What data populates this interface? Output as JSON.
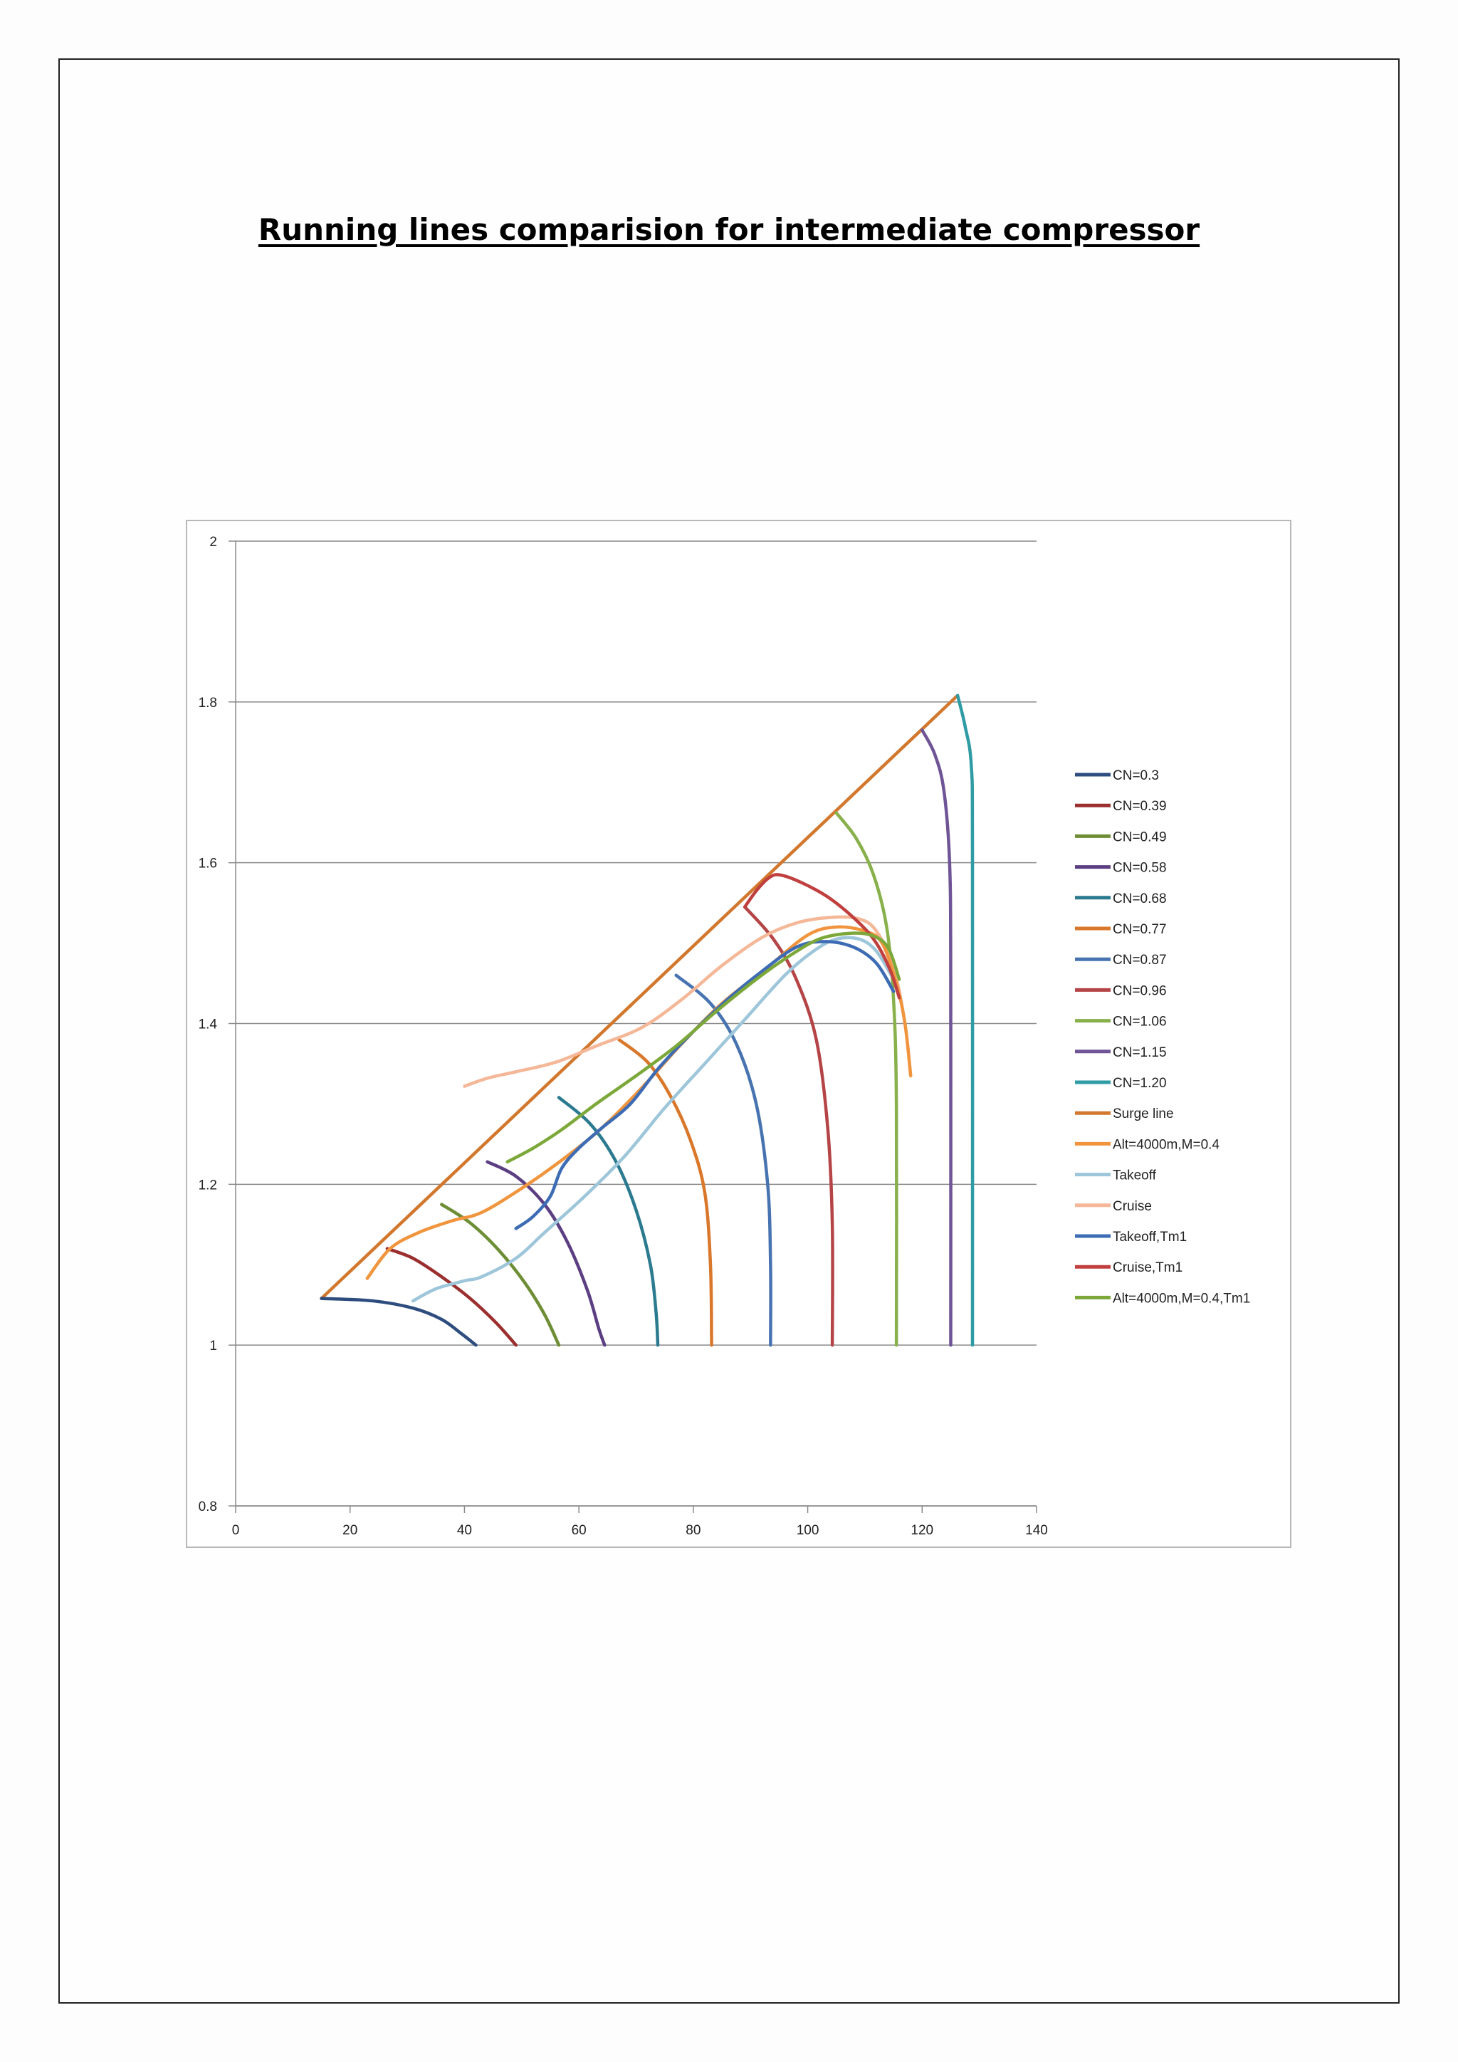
{
  "document": {
    "title": "Running lines comparision for intermediate compressor"
  },
  "chart_data": {
    "type": "line",
    "title": "",
    "xlabel": "",
    "ylabel": "",
    "xlim": [
      0,
      140
    ],
    "ylim": [
      0.8,
      2
    ],
    "x_ticks": [
      "0",
      "20",
      "40",
      "60",
      "80",
      "100",
      "120",
      "140"
    ],
    "y_ticks": [
      "0.8",
      "1",
      "1.2",
      "1.4",
      "1.6",
      "1.8",
      "2"
    ],
    "grid": "horizontal",
    "legend_position": "right",
    "series": [
      {
        "name": "CN=0.3",
        "color": "#2e4d7f",
        "points": [
          [
            15,
            1.058
          ],
          [
            24,
            1.055
          ],
          [
            31,
            1.046
          ],
          [
            36,
            1.032
          ],
          [
            39.5,
            1.014
          ],
          [
            42,
            1.0
          ]
        ]
      },
      {
        "name": "CN=0.39",
        "color": "#9b2e2e",
        "points": [
          [
            26.5,
            1.12
          ],
          [
            31,
            1.108
          ],
          [
            36,
            1.085
          ],
          [
            41,
            1.058
          ],
          [
            45.5,
            1.028
          ],
          [
            49,
            1.0
          ]
        ]
      },
      {
        "name": "CN=0.49",
        "color": "#6e8e35",
        "points": [
          [
            36,
            1.175
          ],
          [
            41,
            1.152
          ],
          [
            46,
            1.118
          ],
          [
            50.5,
            1.078
          ],
          [
            54,
            1.038
          ],
          [
            56.5,
            1.0
          ]
        ]
      },
      {
        "name": "CN=0.58",
        "color": "#5c3f82",
        "points": [
          [
            44,
            1.228
          ],
          [
            49,
            1.21
          ],
          [
            54,
            1.175
          ],
          [
            58,
            1.128
          ],
          [
            61.5,
            1.068
          ],
          [
            63.5,
            1.02
          ],
          [
            64.5,
            1.0
          ]
        ]
      },
      {
        "name": "CN=0.68",
        "color": "#2b7a8f",
        "points": [
          [
            56.5,
            1.308
          ],
          [
            62,
            1.275
          ],
          [
            66.5,
            1.228
          ],
          [
            70,
            1.168
          ],
          [
            72.5,
            1.1
          ],
          [
            73.5,
            1.04
          ],
          [
            73.8,
            1.0
          ]
        ]
      },
      {
        "name": "CN=0.77",
        "color": "#d9772b",
        "points": [
          [
            67,
            1.38
          ],
          [
            72,
            1.352
          ],
          [
            76,
            1.31
          ],
          [
            79.5,
            1.255
          ],
          [
            82,
            1.19
          ],
          [
            83,
            1.1
          ],
          [
            83.2,
            1.0
          ]
        ]
      },
      {
        "name": "CN=0.87",
        "color": "#4773b0",
        "points": [
          [
            77,
            1.46
          ],
          [
            83,
            1.425
          ],
          [
            87.5,
            1.375
          ],
          [
            91,
            1.3
          ],
          [
            93,
            1.2
          ],
          [
            93.5,
            1.1
          ],
          [
            93.5,
            1.0
          ]
        ]
      },
      {
        "name": "CN=0.96",
        "color": "#b54446",
        "points": [
          [
            89,
            1.545
          ],
          [
            94,
            1.505
          ],
          [
            98,
            1.455
          ],
          [
            101.5,
            1.38
          ],
          [
            103.5,
            1.27
          ],
          [
            104.3,
            1.15
          ],
          [
            104.3,
            1.0
          ]
        ]
      },
      {
        "name": "CN=1.06",
        "color": "#88b04b",
        "points": [
          [
            105,
            1.662
          ],
          [
            108.5,
            1.63
          ],
          [
            111.5,
            1.585
          ],
          [
            113.8,
            1.52
          ],
          [
            115,
            1.43
          ],
          [
            115.5,
            1.3
          ],
          [
            115.5,
            1.0
          ]
        ]
      },
      {
        "name": "CN=1.15",
        "color": "#6f5496",
        "points": [
          [
            120,
            1.765
          ],
          [
            122.2,
            1.735
          ],
          [
            123.8,
            1.69
          ],
          [
            124.8,
            1.6
          ],
          [
            125,
            1.45
          ],
          [
            125,
            1.0
          ]
        ]
      },
      {
        "name": "CN=1.20",
        "color": "#2f9ba5",
        "points": [
          [
            126.2,
            1.808
          ],
          [
            127.5,
            1.77
          ],
          [
            128.6,
            1.72
          ],
          [
            128.8,
            1.6
          ],
          [
            128.8,
            1.0
          ]
        ]
      },
      {
        "name": "Surge line",
        "color": "#d2782e",
        "points": [
          [
            15,
            1.058
          ],
          [
            126.2,
            1.808
          ]
        ]
      },
      {
        "name": "Alt=4000m,M=0.4",
        "color": "#f0953d",
        "points": [
          [
            23,
            1.083
          ],
          [
            27,
            1.12
          ],
          [
            32,
            1.14
          ],
          [
            38,
            1.155
          ],
          [
            43,
            1.165
          ],
          [
            50,
            1.195
          ],
          [
            57,
            1.23
          ],
          [
            64,
            1.27
          ],
          [
            71,
            1.32
          ],
          [
            78,
            1.375
          ],
          [
            85,
            1.425
          ],
          [
            93,
            1.47
          ],
          [
            100,
            1.51
          ],
          [
            105,
            1.52
          ],
          [
            110,
            1.515
          ],
          [
            113,
            1.5
          ],
          [
            115.5,
            1.45
          ],
          [
            117,
            1.4
          ],
          [
            118,
            1.335
          ]
        ]
      },
      {
        "name": "Takeoff",
        "color": "#9ec6da",
        "points": [
          [
            31,
            1.055
          ],
          [
            35,
            1.07
          ],
          [
            40,
            1.08
          ],
          [
            43,
            1.085
          ],
          [
            49,
            1.108
          ],
          [
            54,
            1.14
          ],
          [
            61,
            1.185
          ],
          [
            68,
            1.235
          ],
          [
            75,
            1.295
          ],
          [
            82,
            1.35
          ],
          [
            89,
            1.405
          ],
          [
            96,
            1.46
          ],
          [
            101,
            1.49
          ],
          [
            105,
            1.505
          ],
          [
            109,
            1.505
          ],
          [
            112,
            1.49
          ],
          [
            115,
            1.455
          ]
        ]
      },
      {
        "name": "Cruise",
        "color": "#f4b797",
        "points": [
          [
            40,
            1.322
          ],
          [
            44,
            1.332
          ],
          [
            49,
            1.34
          ],
          [
            56,
            1.352
          ],
          [
            63,
            1.372
          ],
          [
            71,
            1.395
          ],
          [
            78,
            1.43
          ],
          [
            85,
            1.472
          ],
          [
            92,
            1.507
          ],
          [
            98,
            1.525
          ],
          [
            104,
            1.532
          ],
          [
            109,
            1.53
          ],
          [
            112,
            1.515
          ],
          [
            115,
            1.47
          ],
          [
            117,
            1.4
          ],
          [
            118,
            1.335
          ]
        ]
      },
      {
        "name": "Takeoff,Tm1",
        "color": "#3d6cb5",
        "points": [
          [
            49,
            1.145
          ],
          [
            52,
            1.16
          ],
          [
            55,
            1.185
          ],
          [
            57,
            1.22
          ],
          [
            60,
            1.245
          ],
          [
            64,
            1.27
          ],
          [
            69,
            1.3
          ],
          [
            74,
            1.345
          ],
          [
            80,
            1.39
          ],
          [
            86,
            1.43
          ],
          [
            92,
            1.465
          ],
          [
            98,
            1.495
          ],
          [
            103,
            1.502
          ],
          [
            108,
            1.495
          ],
          [
            112,
            1.475
          ],
          [
            115,
            1.44
          ]
        ]
      },
      {
        "name": "Cruise,Tm1",
        "color": "#c0403f",
        "points": [
          [
            89,
            1.545
          ],
          [
            91,
            1.565
          ],
          [
            93,
            1.58
          ],
          [
            95,
            1.585
          ],
          [
            99,
            1.575
          ],
          [
            104,
            1.555
          ],
          [
            109,
            1.525
          ],
          [
            112,
            1.5
          ],
          [
            114.5,
            1.465
          ],
          [
            116,
            1.432
          ]
        ]
      },
      {
        "name": "Alt=4000m,M=0.4,Tm1",
        "color": "#7ca83a",
        "points": [
          [
            47.5,
            1.228
          ],
          [
            52,
            1.245
          ],
          [
            57,
            1.268
          ],
          [
            63,
            1.3
          ],
          [
            70,
            1.335
          ],
          [
            77,
            1.372
          ],
          [
            84,
            1.415
          ],
          [
            91,
            1.455
          ],
          [
            97,
            1.485
          ],
          [
            102,
            1.505
          ],
          [
            107,
            1.512
          ],
          [
            111,
            1.51
          ],
          [
            114,
            1.495
          ],
          [
            116,
            1.455
          ]
        ]
      }
    ]
  }
}
